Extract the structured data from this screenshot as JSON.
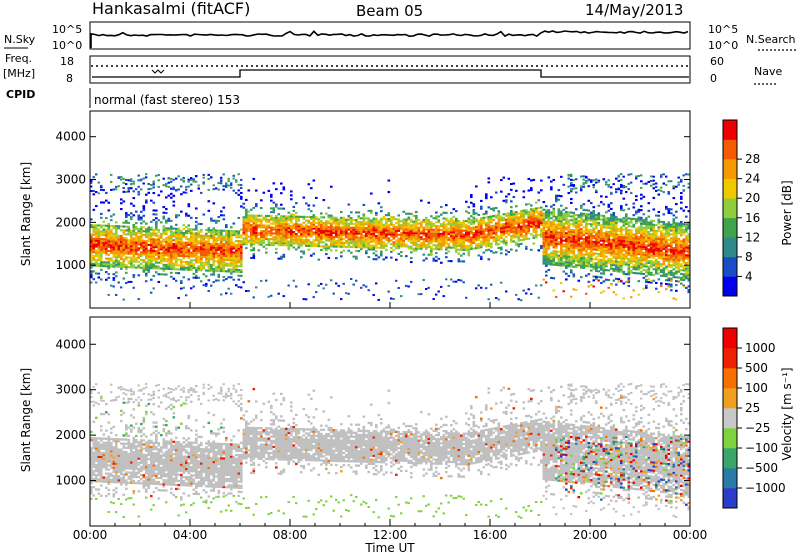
{
  "header": {
    "station": "Hankasalmi (fitACF)",
    "beam": "Beam 05",
    "date": "14/May/2013"
  },
  "noise_panel": {
    "left_label": "N.Sky",
    "left_ticks": [
      "10^5",
      "10^0"
    ],
    "right_ticks": [
      "10^5",
      "10^0"
    ],
    "right_label": "N.Search"
  },
  "freq_panel": {
    "left_label_1": "Freq.",
    "left_label_2": "[MHz]",
    "left_ticks": [
      "18",
      "8"
    ],
    "right_ticks": [
      "60",
      "0"
    ],
    "right_label": "Nave",
    "cpid_label": "CPID",
    "mode_text": "normal (fast stereo) 153"
  },
  "time_axis": {
    "title": "Time UT",
    "ticks": [
      "00:00",
      "04:00",
      "08:00",
      "12:00",
      "16:00",
      "20:00",
      "00:00"
    ]
  },
  "colors": {
    "power": [
      "#0000ee",
      "#1a4cc8",
      "#2e8a8a",
      "#3fa34a",
      "#8fcd3a",
      "#f0c800",
      "#f59a00",
      "#f55a00",
      "#ee0000"
    ],
    "velocity": [
      "#2a3cc8",
      "#2a7aa8",
      "#3ca56a",
      "#7ed23c",
      "#c8c8c8",
      "#f0a020",
      "#f57000",
      "#ee2000",
      "#ee0000"
    ],
    "grey": "#c0c0c0"
  },
  "chart_data": [
    {
      "type": "heatmap",
      "name": "power",
      "ylabel": "Slant Range [km]",
      "yticks": [
        "1000",
        "2000",
        "3000",
        "4000"
      ],
      "ylim": [
        0,
        4600
      ],
      "xlim_hours": [
        0,
        24
      ],
      "colorbar_label": "Power [dB]",
      "colorbar_ticks": [
        "4",
        "8",
        "12",
        "16",
        "20",
        "24",
        "28"
      ]
    },
    {
      "type": "heatmap",
      "name": "velocity",
      "ylabel": "Slant Range [km]",
      "yticks": [
        "1000",
        "2000",
        "3000",
        "4000"
      ],
      "ylim": [
        0,
        4600
      ],
      "xlim_hours": [
        0,
        24
      ],
      "colorbar_label": "Velocity [m s⁻¹]",
      "colorbar_ticks": [
        "1000",
        "500",
        "100",
        "25",
        "−25",
        "−100",
        "−500",
        "−1000"
      ]
    }
  ]
}
